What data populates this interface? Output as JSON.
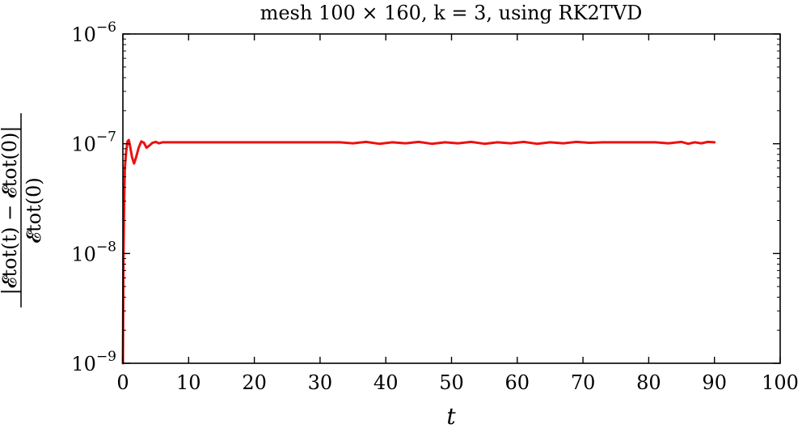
{
  "chart_data": {
    "type": "line",
    "title": "mesh 100 × 160, k = 3, using RK2TVD",
    "xlabel": "t",
    "ylabel_numerator": "|𝓔tot(t) − 𝓔tot(0)|",
    "ylabel_denominator": "𝓔tot(0)",
    "xlim": [
      0,
      100
    ],
    "ylim": [
      1e-09,
      1e-06
    ],
    "yscale": "log",
    "grid": false,
    "x_ticks": [
      0,
      10,
      20,
      30,
      40,
      50,
      60,
      70,
      80,
      90,
      100
    ],
    "x_tick_labels": [
      "0",
      "10",
      "20",
      "30",
      "40",
      "50",
      "60",
      "70",
      "80",
      "90",
      "100"
    ],
    "y_ticks": [
      1e-09,
      1e-08,
      1e-07,
      1e-06
    ],
    "y_tick_labels": [
      {
        "base": "10",
        "exp": "−9"
      },
      {
        "base": "10",
        "exp": "−8"
      },
      {
        "base": "10",
        "exp": "−7"
      },
      {
        "base": "10",
        "exp": "−6"
      }
    ],
    "series": [
      {
        "color": "#ee1111",
        "x": [
          0,
          0.1,
          0.2,
          0.3,
          0.5,
          0.7,
          0.9,
          1.1,
          1.4,
          1.7,
          2.0,
          2.4,
          2.8,
          3.2,
          3.6,
          4.0,
          4.5,
          5.0,
          5.5,
          6.0,
          7.0,
          8.0,
          10,
          15,
          20,
          25,
          30,
          33,
          35,
          37,
          39,
          41,
          43,
          45,
          47,
          49,
          51,
          53,
          55,
          57,
          59,
          61,
          63,
          65,
          67,
          69,
          71,
          73,
          75,
          77,
          79,
          81,
          83,
          85,
          86,
          87,
          88,
          89,
          90
        ],
        "y": [
          1e-09,
          1e-08,
          3e-08,
          6e-08,
          8.5e-08,
          1.05e-07,
          1.08e-07,
          9.5e-08,
          7.5e-08,
          6.6e-08,
          7.5e-08,
          9.2e-08,
          1.05e-07,
          1.02e-07,
          9.2e-08,
          9.6e-08,
          1.02e-07,
          1.04e-07,
          1.01e-07,
          1.03e-07,
          1.03e-07,
          1.03e-07,
          1.03e-07,
          1.03e-07,
          1.03e-07,
          1.03e-07,
          1.03e-07,
          1.03e-07,
          1.01e-07,
          1.04e-07,
          1e-07,
          1.03e-07,
          1.01e-07,
          1.04e-07,
          1e-07,
          1.03e-07,
          1.01e-07,
          1.04e-07,
          1e-07,
          1.03e-07,
          1.01e-07,
          1.04e-07,
          1e-07,
          1.03e-07,
          1.01e-07,
          1.04e-07,
          1.02e-07,
          1.03e-07,
          1.03e-07,
          1.03e-07,
          1.03e-07,
          1.03e-07,
          1.01e-07,
          1.04e-07,
          1e-07,
          1.03e-07,
          1.01e-07,
          1.04e-07,
          1.03e-07
        ]
      }
    ]
  }
}
